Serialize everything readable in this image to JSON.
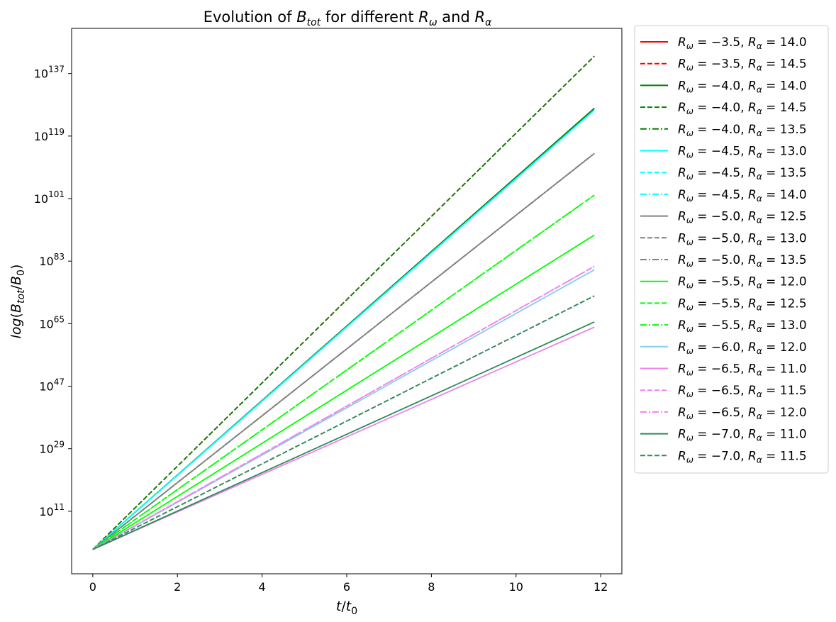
{
  "chart_data": {
    "type": "line",
    "title": "Evolution of B_tot for different R_ω and R_α",
    "xlabel": "t/t_0",
    "ylabel": "log(B_tot/B_0)",
    "xlim": [
      -0.5,
      12.5
    ],
    "ylim": [
      -7,
      150
    ],
    "y_scale": "log",
    "grid": false,
    "legend_position": "outside-right",
    "x_ticks": [
      0,
      2,
      4,
      6,
      8,
      10,
      12
    ],
    "x_tick_labels": [
      "0",
      "2",
      "4",
      "6",
      "8",
      "10",
      "12"
    ],
    "y_ticks": [
      11,
      29,
      47,
      65,
      83,
      101,
      119,
      137
    ],
    "y_tick_labels": [
      "10^11",
      "10^29",
      "10^47",
      "10^65",
      "10^83",
      "10^101",
      "10^119",
      "10^137"
    ],
    "series": [
      {
        "name": "R_ω = −3.5, R_α = 14.0",
        "color": "#ff0000",
        "dash": "solid",
        "x": [
          0,
          11.85
        ],
        "y": [
          0,
          127
        ]
      },
      {
        "name": "R_ω = −3.5, R_α = 14.5",
        "color": "#ff0000",
        "dash": "dashed",
        "x": [
          0,
          11.85
        ],
        "y": [
          0,
          142
        ]
      },
      {
        "name": "R_ω = −4.0, R_α = 14.0",
        "color": "#008000",
        "dash": "solid",
        "x": [
          0,
          11.85
        ],
        "y": [
          0,
          127
        ]
      },
      {
        "name": "R_ω = −4.0, R_α = 14.5",
        "color": "#008000",
        "dash": "dashed",
        "x": [
          0,
          11.85
        ],
        "y": [
          0,
          142
        ]
      },
      {
        "name": "R_ω = −4.0, R_α = 13.5",
        "color": "#008000",
        "dash": "dashdot",
        "x": [
          0,
          11.85
        ],
        "y": [
          0,
          114
        ]
      },
      {
        "name": "R_ω = −4.5, R_α = 13.0",
        "color": "#00ffff",
        "dash": "solid",
        "x": [
          0,
          11.85
        ],
        "y": [
          0,
          126.5
        ]
      },
      {
        "name": "R_ω = −4.5, R_α = 13.5",
        "color": "#00ffff",
        "dash": "dashed",
        "x": [
          0,
          11.85
        ],
        "y": [
          0,
          126.5
        ]
      },
      {
        "name": "R_ω = −4.5, R_α = 14.0",
        "color": "#00ffff",
        "dash": "dashdot",
        "x": [
          0,
          11.85
        ],
        "y": [
          0,
          126.5
        ]
      },
      {
        "name": "R_ω = −5.0, R_α = 12.5",
        "color": "#808080",
        "dash": "solid",
        "x": [
          0,
          11.85
        ],
        "y": [
          0,
          114
        ]
      },
      {
        "name": "R_ω = −5.0, R_α = 13.0",
        "color": "#808080",
        "dash": "dashed",
        "x": [
          0,
          11.85
        ],
        "y": [
          0,
          73
        ]
      },
      {
        "name": "R_ω = −5.0, R_α = 13.5",
        "color": "#808080",
        "dash": "dashdot",
        "x": [
          0,
          11.85
        ],
        "y": [
          0,
          114
        ]
      },
      {
        "name": "R_ω = −5.5, R_α = 12.0",
        "color": "#00ff00",
        "dash": "solid",
        "x": [
          0,
          11.85
        ],
        "y": [
          0,
          90.5
        ]
      },
      {
        "name": "R_ω = −5.5, R_α = 12.5",
        "color": "#00ff00",
        "dash": "dashed",
        "x": [
          0,
          11.85
        ],
        "y": [
          0,
          102
        ]
      },
      {
        "name": "R_ω = −5.5, R_α = 13.0",
        "color": "#00ff00",
        "dash": "dashdot",
        "x": [
          0,
          11.85
        ],
        "y": [
          0,
          102
        ]
      },
      {
        "name": "R_ω = −6.0, R_α = 12.0",
        "color": "#87ceeb",
        "dash": "solid",
        "x": [
          0,
          11.85
        ],
        "y": [
          0,
          80.5
        ]
      },
      {
        "name": "R_ω = −6.5, R_α = 11.0",
        "color": "#ee82ee",
        "dash": "solid",
        "x": [
          0,
          11.85
        ],
        "y": [
          0,
          64
        ]
      },
      {
        "name": "R_ω = −6.5, R_α = 11.5",
        "color": "#ee82ee",
        "dash": "dashed",
        "x": [
          0,
          11.85
        ],
        "y": [
          0,
          81.5
        ]
      },
      {
        "name": "R_ω = −6.5, R_α = 12.0",
        "color": "#ee82ee",
        "dash": "dashdot",
        "x": [
          0,
          11.85
        ],
        "y": [
          0,
          81.5
        ]
      },
      {
        "name": "R_ω = −7.0, R_α = 11.0",
        "color": "#2e8b57",
        "dash": "solid",
        "x": [
          0,
          11.85
        ],
        "y": [
          0,
          65.5
        ]
      },
      {
        "name": "R_ω = −7.0, R_α = 11.5",
        "color": "#2e8b57",
        "dash": "dashed",
        "x": [
          0,
          11.85
        ],
        "y": [
          0,
          73
        ]
      }
    ]
  }
}
